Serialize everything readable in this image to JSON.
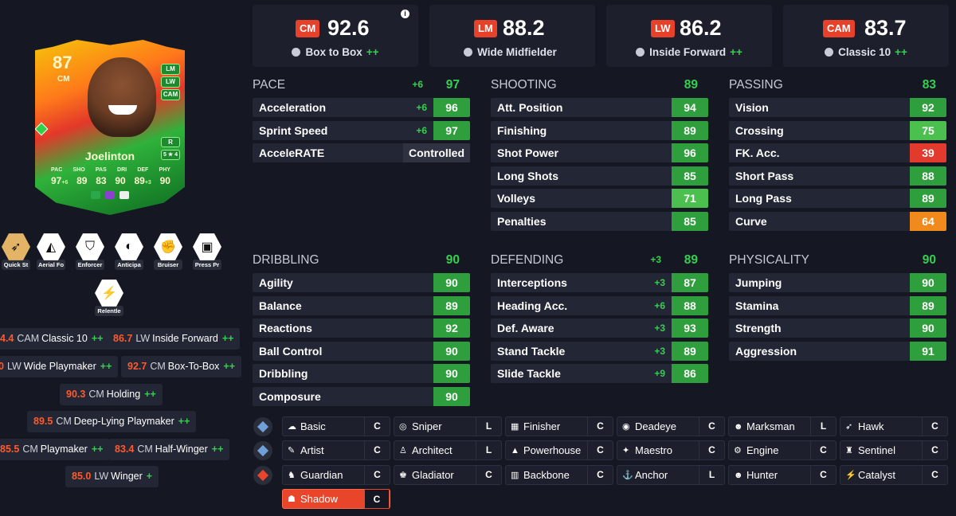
{
  "card": {
    "rating": "87",
    "position": "CM",
    "name": "Joelinton",
    "alt_positions": [
      "LM",
      "LW",
      "CAM"
    ],
    "skill_tag": "R",
    "skill_stars": "5 ★ 4",
    "stat_labels": [
      "PAC",
      "SHO",
      "PAS",
      "DRI",
      "DEF",
      "PHY"
    ],
    "stat_values": [
      "97",
      "89",
      "83",
      "90",
      "89",
      "90"
    ],
    "stat_boosts": [
      "+6",
      "",
      "",
      "",
      "+3",
      ""
    ]
  },
  "playstyles": [
    {
      "label": "Quick St",
      "icon": "rocket-icon",
      "gold": true
    },
    {
      "label": "Aerial Fo",
      "icon": "aerial-icon",
      "gold": false
    },
    {
      "label": "Enforcer",
      "icon": "enforcer-icon",
      "gold": false
    },
    {
      "label": "Anticipa",
      "icon": "raccoon-icon",
      "gold": false
    },
    {
      "label": "Bruiser",
      "icon": "flex-arm-icon",
      "gold": false
    },
    {
      "label": "Press Pr",
      "icon": "press-icon",
      "gold": false
    },
    {
      "label": "Relentle",
      "icon": "battery-icon",
      "gold": false
    }
  ],
  "role_chips": [
    {
      "rating": "4.4",
      "pos": "CAM",
      "name": "Classic 10",
      "plus": "++"
    },
    {
      "rating": "86.7",
      "pos": "LW",
      "name": "Inside Forward",
      "plus": "++"
    },
    {
      "rating": "0",
      "pos": "LW",
      "name": "Wide Playmaker",
      "plus": "++"
    },
    {
      "rating": "92.7",
      "pos": "CM",
      "name": "Box-To-Box",
      "plus": "++"
    },
    {
      "rating": "90.3",
      "pos": "CM",
      "name": "Holding",
      "plus": "++"
    },
    {
      "rating": "89.5",
      "pos": "CM",
      "name": "Deep-Lying Playmaker",
      "plus": "++"
    },
    {
      "rating": "85.5",
      "pos": "CM",
      "name": "Playmaker",
      "plus": "++"
    },
    {
      "rating": "83.4",
      "pos": "CM",
      "name": "Half-Winger",
      "plus": "++"
    },
    {
      "rating": "85.0",
      "pos": "LW",
      "name": "Winger",
      "plus": "+"
    }
  ],
  "top_roles": [
    {
      "pos": "CM",
      "value": "92.6",
      "role": "Box to Box",
      "plus": "++"
    },
    {
      "pos": "LM",
      "value": "88.2",
      "role": "Wide Midfielder",
      "plus": ""
    },
    {
      "pos": "LW",
      "value": "86.2",
      "role": "Inside Forward",
      "plus": "++"
    },
    {
      "pos": "CAM",
      "value": "83.7",
      "role": "Classic 10",
      "plus": "++"
    }
  ],
  "info_icon": "i",
  "stats": {
    "pace": {
      "title": "PACE",
      "boost": "+6",
      "total": "97",
      "rows": [
        {
          "name": "Acceleration",
          "boost": "+6",
          "value": "96",
          "color": "#2f9e3c"
        },
        {
          "name": "Sprint Speed",
          "boost": "+6",
          "value": "97",
          "color": "#2f9e3c"
        },
        {
          "name": "AcceleRATE",
          "boost": "",
          "value": "Controlled",
          "color": "#2e3241"
        }
      ]
    },
    "shooting": {
      "title": "SHOOTING",
      "boost": "",
      "total": "89",
      "rows": [
        {
          "name": "Att. Position",
          "boost": "",
          "value": "94",
          "color": "#2f9e3c"
        },
        {
          "name": "Finishing",
          "boost": "",
          "value": "89",
          "color": "#2f9e3c"
        },
        {
          "name": "Shot Power",
          "boost": "",
          "value": "96",
          "color": "#2f9e3c"
        },
        {
          "name": "Long Shots",
          "boost": "",
          "value": "85",
          "color": "#2f9e3c"
        },
        {
          "name": "Volleys",
          "boost": "",
          "value": "71",
          "color": "#4cc04f"
        },
        {
          "name": "Penalties",
          "boost": "",
          "value": "85",
          "color": "#2f9e3c"
        }
      ]
    },
    "passing": {
      "title": "PASSING",
      "boost": "",
      "total": "83",
      "rows": [
        {
          "name": "Vision",
          "boost": "",
          "value": "92",
          "color": "#2f9e3c"
        },
        {
          "name": "Crossing",
          "boost": "",
          "value": "75",
          "color": "#4cc04f"
        },
        {
          "name": "FK. Acc.",
          "boost": "",
          "value": "39",
          "color": "#e23b2e"
        },
        {
          "name": "Short Pass",
          "boost": "",
          "value": "88",
          "color": "#2f9e3c"
        },
        {
          "name": "Long Pass",
          "boost": "",
          "value": "89",
          "color": "#2f9e3c"
        },
        {
          "name": "Curve",
          "boost": "",
          "value": "64",
          "color": "#f08a1c"
        }
      ]
    },
    "dribbling": {
      "title": "DRIBBLING",
      "boost": "",
      "total": "90",
      "rows": [
        {
          "name": "Agility",
          "boost": "",
          "value": "90",
          "color": "#2f9e3c"
        },
        {
          "name": "Balance",
          "boost": "",
          "value": "89",
          "color": "#2f9e3c"
        },
        {
          "name": "Reactions",
          "boost": "",
          "value": "92",
          "color": "#2f9e3c"
        },
        {
          "name": "Ball Control",
          "boost": "",
          "value": "90",
          "color": "#2f9e3c"
        },
        {
          "name": "Dribbling",
          "boost": "",
          "value": "90",
          "color": "#2f9e3c"
        },
        {
          "name": "Composure",
          "boost": "",
          "value": "90",
          "color": "#2f9e3c"
        }
      ]
    },
    "defending": {
      "title": "DEFENDING",
      "boost": "+3",
      "total": "89",
      "rows": [
        {
          "name": "Interceptions",
          "boost": "+3",
          "value": "87",
          "color": "#2f9e3c"
        },
        {
          "name": "Heading Acc.",
          "boost": "+6",
          "value": "88",
          "color": "#2f9e3c"
        },
        {
          "name": "Def. Aware",
          "boost": "+3",
          "value": "93",
          "color": "#2f9e3c"
        },
        {
          "name": "Stand Tackle",
          "boost": "+3",
          "value": "89",
          "color": "#2f9e3c"
        },
        {
          "name": "Slide Tackle",
          "boost": "+9",
          "value": "86",
          "color": "#2f9e3c"
        }
      ]
    },
    "physicality": {
      "title": "PHYSICALITY",
      "boost": "",
      "total": "90",
      "rows": [
        {
          "name": "Jumping",
          "boost": "",
          "value": "90",
          "color": "#2f9e3c"
        },
        {
          "name": "Stamina",
          "boost": "",
          "value": "89",
          "color": "#2f9e3c"
        },
        {
          "name": "Strength",
          "boost": "",
          "value": "90",
          "color": "#2f9e3c"
        },
        {
          "name": "Aggression",
          "boost": "",
          "value": "91",
          "color": "#2f9e3c"
        }
      ]
    }
  },
  "chem_styles": [
    [
      {
        "name": "Basic",
        "glyph": "☁",
        "level": "C"
      },
      {
        "name": "Sniper",
        "glyph": "◎",
        "level": "L"
      },
      {
        "name": "Finisher",
        "glyph": "▦",
        "level": "C"
      },
      {
        "name": "Deadeye",
        "glyph": "◉",
        "level": "C"
      },
      {
        "name": "Marksman",
        "glyph": "☻",
        "level": "L"
      },
      {
        "name": "Hawk",
        "glyph": "➶",
        "level": "C"
      }
    ],
    [
      {
        "name": "Artist",
        "glyph": "✎",
        "level": "C"
      },
      {
        "name": "Architect",
        "glyph": "♙",
        "level": "L"
      },
      {
        "name": "Powerhouse",
        "glyph": "▲",
        "level": "C"
      },
      {
        "name": "Maestro",
        "glyph": "✦",
        "level": "C"
      },
      {
        "name": "Engine",
        "glyph": "⚙",
        "level": "C"
      },
      {
        "name": "Sentinel",
        "glyph": "♜",
        "level": "C"
      }
    ],
    [
      {
        "name": "Guardian",
        "glyph": "♞",
        "level": "C"
      },
      {
        "name": "Gladiator",
        "glyph": "♚",
        "level": "C"
      },
      {
        "name": "Backbone",
        "glyph": "▥",
        "level": "C"
      },
      {
        "name": "Anchor",
        "glyph": "⚓",
        "level": "L"
      },
      {
        "name": "Hunter",
        "glyph": "☻",
        "level": "C"
      },
      {
        "name": "Catalyst",
        "glyph": "⚡",
        "level": "C"
      }
    ],
    [
      {
        "name": "Shadow",
        "glyph": "☗",
        "level": "C"
      }
    ]
  ],
  "tier_colors": [
    "#6fa0d8",
    "#6fa0d8",
    "#e8452a"
  ]
}
